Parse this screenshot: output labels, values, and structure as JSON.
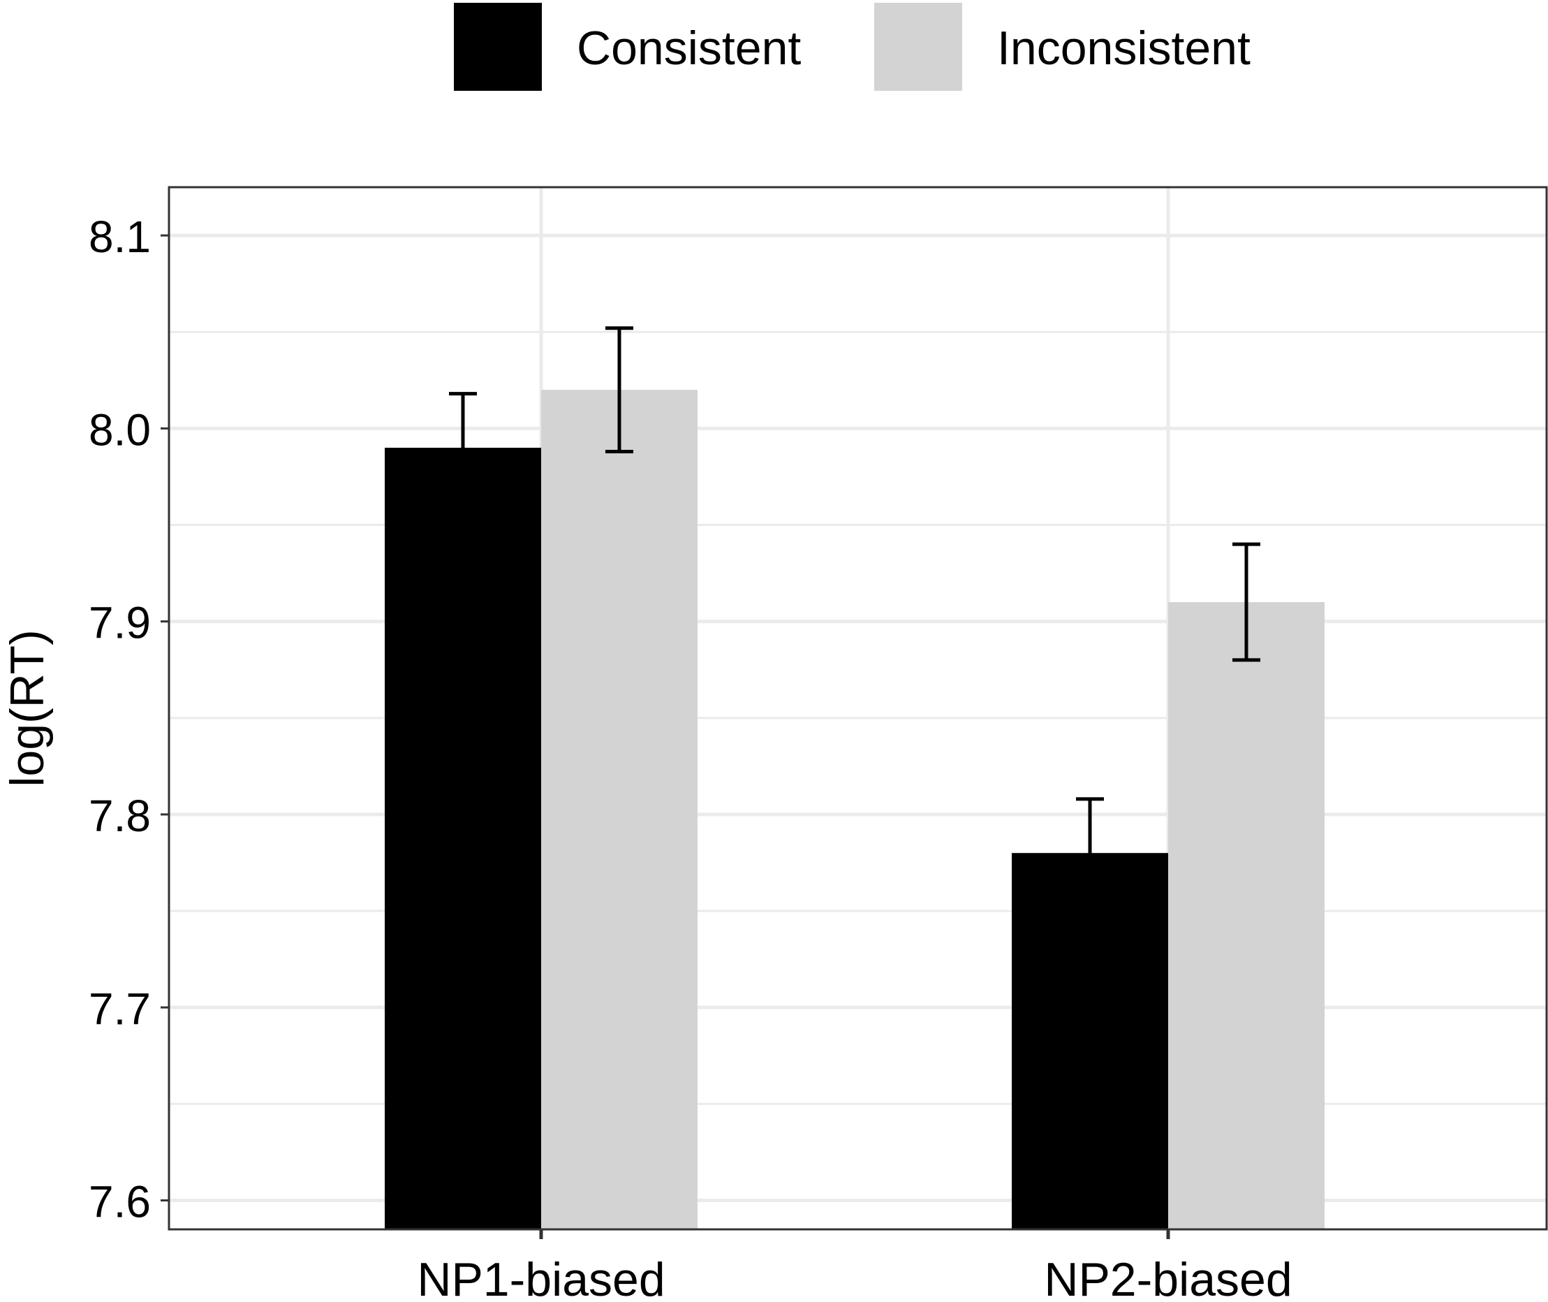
{
  "chart_data": {
    "type": "bar",
    "title": "",
    "xlabel": "",
    "ylabel": "log(RT)",
    "categories": [
      "NP1-biased",
      "NP2-biased"
    ],
    "series": [
      {
        "name": "Consistent",
        "color": "#000000",
        "values": [
          7.99,
          7.78
        ],
        "error_upper": [
          8.018,
          7.808
        ],
        "error_lower": [
          7.962,
          7.752
        ]
      },
      {
        "name": "Inconsistent",
        "color": "#d3d3d3",
        "values": [
          8.02,
          7.91
        ],
        "error_upper": [
          8.052,
          7.94
        ],
        "error_lower": [
          7.988,
          7.88
        ]
      }
    ],
    "ylim": [
      7.585,
      8.125
    ],
    "yticks": [
      "7.6",
      "7.7",
      "7.8",
      "7.9",
      "8.0",
      "8.1"
    ],
    "ytick_values": [
      7.6,
      7.7,
      7.8,
      7.9,
      8.0,
      8.1
    ],
    "grid": true,
    "legend_position": "top"
  }
}
